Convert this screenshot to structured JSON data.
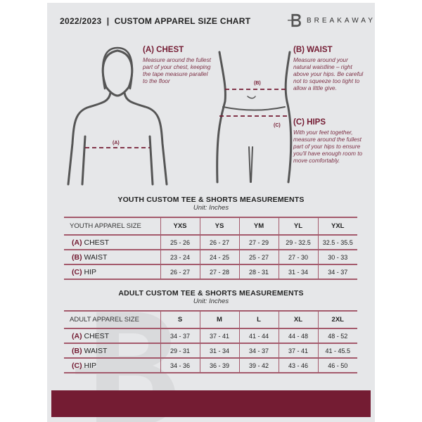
{
  "header": {
    "title": "2022/2023  |  CUSTOM APPAREL SIZE CHART",
    "brand": "BREAKAWAY"
  },
  "sections": {
    "chest": {
      "title": "(A) CHEST",
      "text": "Measure around the fullest part of your chest, keeping the tape measure parallel to the floor",
      "marker": "(A)"
    },
    "waist": {
      "title": "(B) WAIST",
      "text": "Measure around your natural waistline – right above your hips. Be careful not to squeeze too tight to allow a little give.",
      "marker": "(B)"
    },
    "hips": {
      "title": "(C) HIPS",
      "text": "With your feet together, measure around the fullest part of your hips to ensure you'll have enough room to move comfortably.",
      "marker": "(C)"
    }
  },
  "youth": {
    "title": "YOUTH CUSTOM TEE & SHORTS MEASUREMENTS",
    "unit": "Unit: Inches",
    "header": "YOUTH APPAREL SIZE",
    "sizes": [
      "YXS",
      "YS",
      "YM",
      "YL",
      "YXL"
    ],
    "rows": [
      {
        "code": "(A)",
        "label": "CHEST",
        "values": [
          "25 - 26",
          "26 - 27",
          "27 - 29",
          "29 - 32.5",
          "32.5 - 35.5"
        ]
      },
      {
        "code": "(B)",
        "label": "WAIST",
        "values": [
          "23 - 24",
          "24 - 25",
          "25 - 27",
          "27 - 30",
          "30 - 33"
        ]
      },
      {
        "code": "(C)",
        "label": "HIP",
        "values": [
          "26 - 27",
          "27 - 28",
          "28 - 31",
          "31 - 34",
          "34 - 37"
        ]
      }
    ]
  },
  "adult": {
    "title": "ADULT CUSTOM TEE & SHORTS MEASUREMENTS",
    "unit": "Unit: Inches",
    "header": "ADULT APPAREL SIZE",
    "sizes": [
      "S",
      "M",
      "L",
      "XL",
      "2XL"
    ],
    "rows": [
      {
        "code": "(A)",
        "label": "CHEST",
        "values": [
          "34 - 37",
          "37 - 41",
          "41 - 44",
          "44 - 48",
          "48 - 52"
        ]
      },
      {
        "code": "(B)",
        "label": "WAIST",
        "values": [
          "29 - 31",
          "31 - 34",
          "34 - 37",
          "37 - 41",
          "41 - 45.5"
        ]
      },
      {
        "code": "(C)",
        "label": "HIP",
        "values": [
          "34 - 36",
          "36 - 39",
          "39 - 42",
          "43 - 46",
          "46 - 50"
        ]
      }
    ]
  },
  "colors": {
    "accent": "#741c33",
    "panel": "#e6e7e9"
  }
}
